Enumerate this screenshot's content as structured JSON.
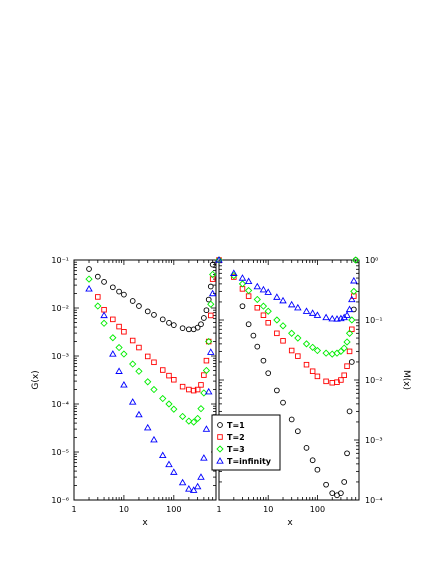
{
  "chart_data": [
    {
      "panel": "left",
      "type": "scatter",
      "xscale": "log",
      "yscale": "log",
      "xlim": [
        1,
        700
      ],
      "ylim": [
        1e-06,
        0.1
      ],
      "xlabel": "x",
      "ylabel": "G(x)",
      "x_ticks": [
        1,
        10,
        100
      ],
      "y_ticks": [
        "10^-6",
        "10^-5",
        "10^-4",
        "10^-3",
        "10^-2",
        "10^-1"
      ],
      "series": [
        {
          "name": "T=1",
          "marker": "circle",
          "color": "#000000",
          "x": [
            2,
            3,
            4,
            6,
            8,
            10,
            15,
            20,
            30,
            40,
            60,
            80,
            100,
            150,
            200,
            250,
            300,
            350,
            400,
            450,
            500,
            550,
            600
          ],
          "y": [
            0.065,
            0.045,
            0.035,
            0.027,
            0.022,
            0.019,
            0.014,
            0.011,
            0.0085,
            0.0072,
            0.0058,
            0.0049,
            0.0044,
            0.0038,
            0.0036,
            0.0036,
            0.0039,
            0.0046,
            0.0062,
            0.009,
            0.015,
            0.028,
            0.08
          ]
        },
        {
          "name": "T=2",
          "marker": "square",
          "color": "#ff0000",
          "x": [
            3,
            4,
            6,
            8,
            10,
            15,
            20,
            30,
            40,
            60,
            80,
            100,
            150,
            200,
            250,
            300,
            350,
            400,
            450,
            500,
            550,
            600
          ],
          "y": [
            0.017,
            0.0092,
            0.0058,
            0.0041,
            0.0032,
            0.0021,
            0.0015,
            0.00098,
            0.00074,
            0.00051,
            0.00039,
            0.00032,
            0.00023,
            0.0002,
            0.00019,
            0.0002,
            0.00025,
            0.0004,
            0.0008,
            0.002,
            0.007,
            0.04
          ]
        },
        {
          "name": "T=3",
          "marker": "diamond",
          "color": "#00ee00",
          "x": [
            2,
            3,
            4,
            6,
            8,
            10,
            15,
            20,
            30,
            40,
            60,
            80,
            100,
            150,
            200,
            250,
            300,
            350,
            400,
            450,
            500,
            550,
            600
          ],
          "y": [
            0.04,
            0.011,
            0.0048,
            0.0024,
            0.0015,
            0.0011,
            0.00068,
            0.00048,
            0.00029,
            0.0002,
            0.00013,
            0.0001,
            7.8e-05,
            5.5e-05,
            4.4e-05,
            4.2e-05,
            5e-05,
            8e-05,
            0.00017,
            0.0005,
            0.002,
            0.012,
            0.05
          ]
        },
        {
          "name": "T=infinity",
          "marker": "triangle",
          "color": "#0000ff",
          "x": [
            2,
            4,
            6,
            8,
            10,
            15,
            20,
            30,
            40,
            60,
            80,
            100,
            150,
            200,
            250,
            300,
            350,
            400,
            450,
            500,
            550,
            600
          ],
          "y": [
            0.025,
            0.007,
            0.0011,
            0.00048,
            0.00025,
            0.00011,
            6e-05,
            3.2e-05,
            1.8e-05,
            8.5e-06,
            5.5e-06,
            3.8e-06,
            2.3e-06,
            1.7e-06,
            1.6e-06,
            1.9e-06,
            3e-06,
            7.5e-06,
            3e-05,
            0.00018,
            0.0012,
            0.02
          ]
        }
      ]
    },
    {
      "panel": "right",
      "type": "scatter",
      "xscale": "log",
      "yscale": "log",
      "xlim": [
        1,
        700
      ],
      "ylim": [
        0.0001,
        1
      ],
      "xlabel": "x",
      "ylabel": "M(x)",
      "x_ticks": [
        1,
        10,
        100
      ],
      "y_ticks": [
        "10^-4",
        "10^-3",
        "10^-2",
        "10^-1",
        "10^0"
      ],
      "series": [
        {
          "name": "T=1",
          "marker": "circle",
          "color": "#000000",
          "x": [
            1,
            3,
            4,
            5,
            6,
            8,
            10,
            15,
            20,
            30,
            40,
            60,
            80,
            100,
            150,
            200,
            250,
            300,
            350,
            400,
            450,
            500,
            550,
            600
          ],
          "y": [
            1.0,
            0.17,
            0.085,
            0.055,
            0.036,
            0.021,
            0.013,
            0.0067,
            0.0042,
            0.0022,
            0.0014,
            0.00074,
            0.00046,
            0.00032,
            0.00018,
            0.00013,
            0.00012,
            0.00013,
            0.0002,
            0.0006,
            0.003,
            0.02,
            0.15,
            1.0
          ]
        },
        {
          "name": "T=2",
          "marker": "square",
          "color": "#ff0000",
          "x": [
            1,
            2,
            3,
            4,
            6,
            8,
            10,
            15,
            20,
            30,
            40,
            60,
            80,
            100,
            150,
            200,
            250,
            300,
            350,
            400,
            450,
            500,
            550
          ],
          "y": [
            1.0,
            0.52,
            0.33,
            0.25,
            0.16,
            0.12,
            0.09,
            0.06,
            0.045,
            0.031,
            0.025,
            0.018,
            0.014,
            0.0115,
            0.0095,
            0.009,
            0.0092,
            0.01,
            0.012,
            0.017,
            0.03,
            0.07,
            0.25
          ]
        },
        {
          "name": "T=3",
          "marker": "diamond",
          "color": "#00ee00",
          "x": [
            1,
            2,
            3,
            4,
            6,
            8,
            10,
            15,
            20,
            30,
            40,
            60,
            80,
            100,
            150,
            200,
            250,
            300,
            350,
            400,
            450,
            500,
            550,
            600
          ],
          "y": [
            1.0,
            0.55,
            0.4,
            0.31,
            0.22,
            0.17,
            0.14,
            0.1,
            0.08,
            0.06,
            0.05,
            0.04,
            0.035,
            0.031,
            0.028,
            0.027,
            0.028,
            0.03,
            0.034,
            0.043,
            0.06,
            0.1,
            0.3,
            1.0
          ]
        },
        {
          "name": "T=infinity",
          "marker": "triangle",
          "color": "#0000ff",
          "x": [
            1,
            2,
            3,
            4,
            6,
            8,
            10,
            15,
            20,
            30,
            40,
            60,
            80,
            100,
            150,
            200,
            250,
            300,
            350,
            400,
            450,
            500,
            550
          ],
          "y": [
            1.0,
            0.6,
            0.5,
            0.44,
            0.36,
            0.32,
            0.29,
            0.24,
            0.21,
            0.18,
            0.16,
            0.14,
            0.13,
            0.12,
            0.11,
            0.105,
            0.104,
            0.106,
            0.11,
            0.12,
            0.15,
            0.22,
            0.45
          ]
        }
      ]
    }
  ],
  "legend": {
    "entries": [
      {
        "label": "T=1",
        "marker": "circle",
        "color": "#000000"
      },
      {
        "label": "T=2",
        "marker": "square",
        "color": "#ff0000"
      },
      {
        "label": "T=3",
        "marker": "diamond",
        "color": "#00ee00"
      },
      {
        "label": "T=infinity",
        "marker": "triangle",
        "color": "#0000ff"
      }
    ],
    "placement": "bottom-right of left panel"
  }
}
